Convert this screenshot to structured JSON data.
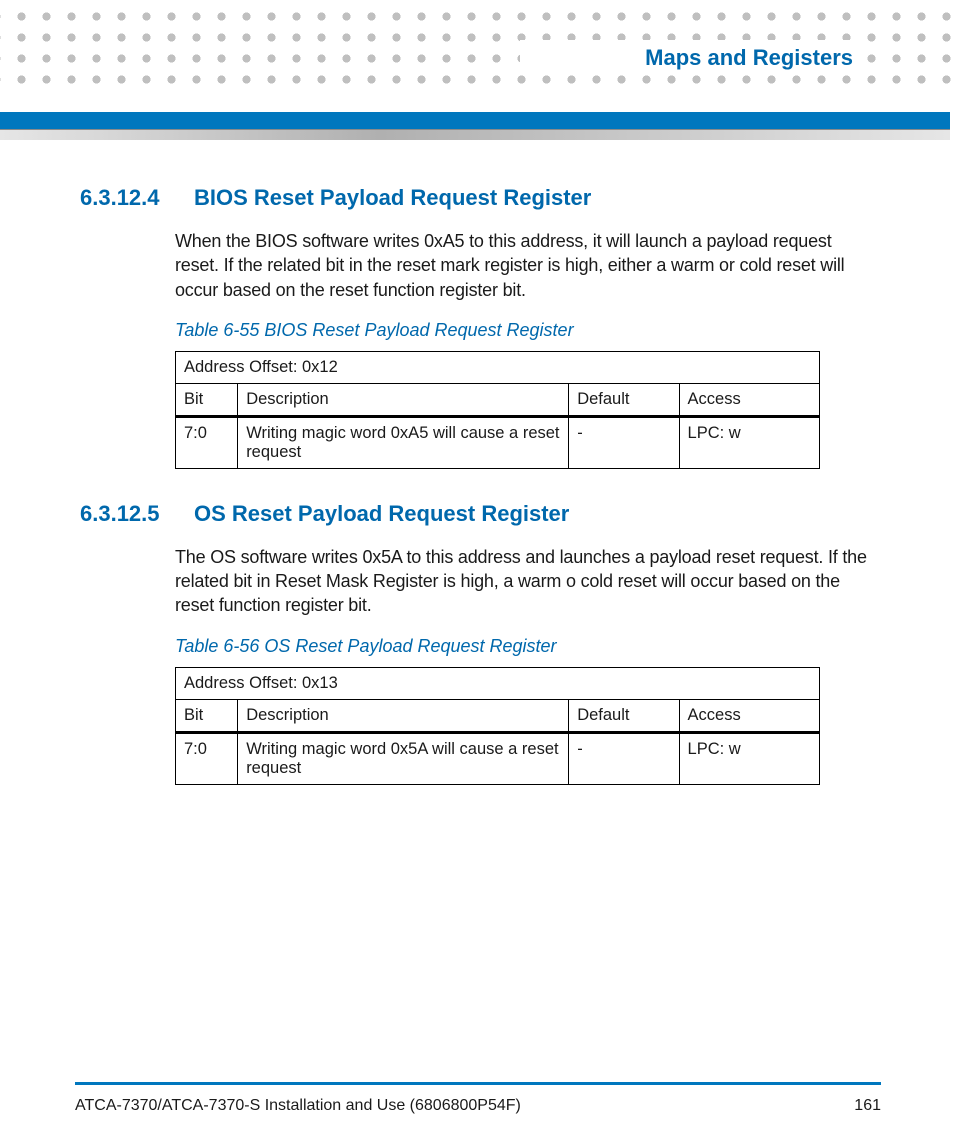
{
  "accent_color": "#0068ac",
  "bar_color": "#0077be",
  "dot_color": "#bfbfbf",
  "header": {
    "chapter": "Maps and Registers"
  },
  "sections": [
    {
      "num": "6.3.12.4",
      "title": "BIOS Reset Payload Request Register",
      "body": "When the BIOS software writes 0xA5 to this address, it will launch a payload request reset. If the related bit in the reset mark register is high, either a warm or cold reset will occur based on the reset function register bit.",
      "table": {
        "caption": "Table 6-55 BIOS Reset Payload Request Register",
        "address": "Address Offset: 0x12",
        "columns": [
          "Bit",
          "Description",
          "Default",
          "Access"
        ],
        "rows": [
          {
            "bit": "7:0",
            "desc": "Writing magic word 0xA5 will cause a reset request",
            "def": "-",
            "acc": "LPC: w"
          }
        ]
      }
    },
    {
      "num": "6.3.12.5",
      "title": "OS Reset Payload Request Register",
      "body": "The OS software writes 0x5A to this address and launches a payload reset request. If the related bit in Reset Mask Register is high, a warm o cold reset will occur based on the reset function register bit.",
      "table": {
        "caption": "Table 6-56 OS Reset Payload Request Register",
        "address": "Address Offset: 0x13",
        "columns": [
          "Bit",
          "Description",
          "Default",
          "Access"
        ],
        "rows": [
          {
            "bit": "7:0",
            "desc": "Writing magic word 0x5A will cause a reset request",
            "def": "-",
            "acc": "LPC: w"
          }
        ]
      }
    }
  ],
  "footer": {
    "doc": "ATCA-7370/ATCA-7370-S Installation and Use (6806800P54F)",
    "page": "161"
  }
}
